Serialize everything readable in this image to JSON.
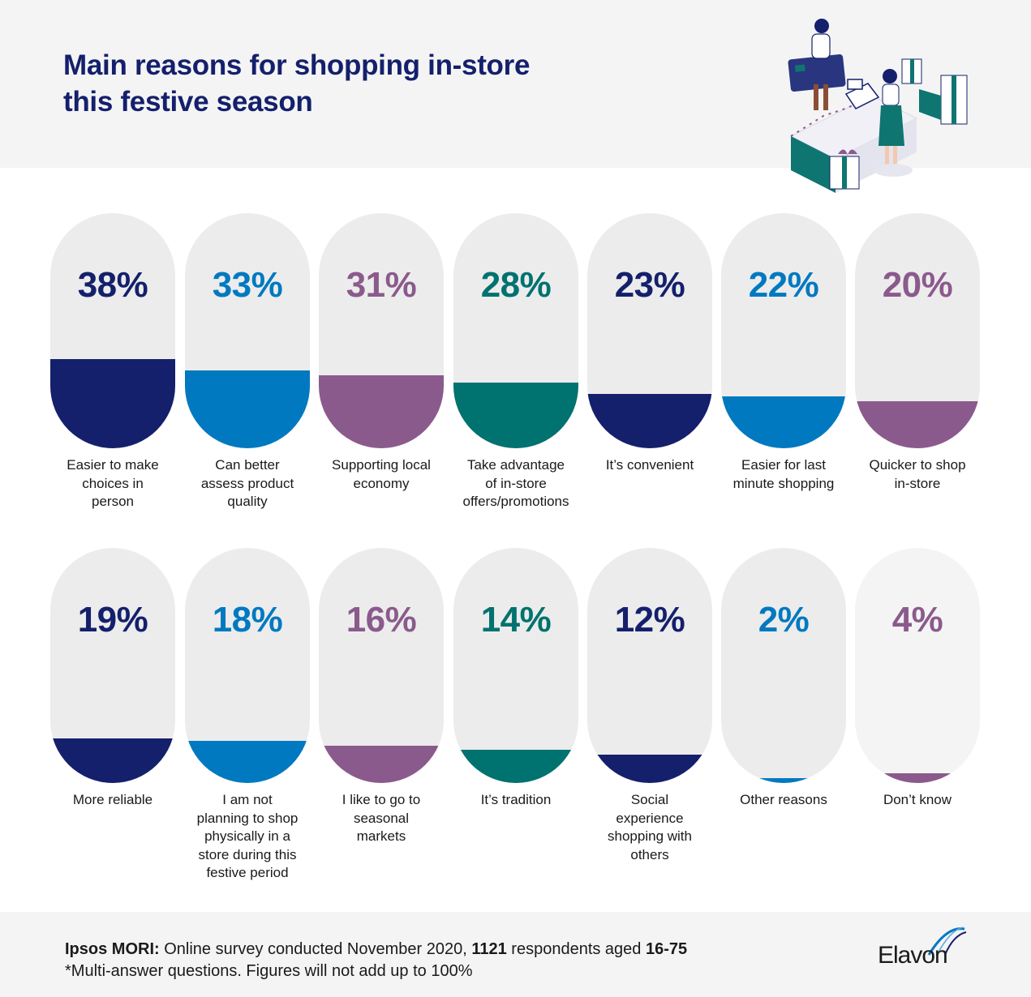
{
  "title_line1": "Main reasons for shopping in-store",
  "title_line2": "this festive season",
  "chart_data": {
    "type": "bar",
    "unit": "%",
    "categories": [
      "Easier to make choices in person",
      "Can better assess product quality",
      "Supporting local economy",
      "Take advantage of in-store offers/promotions",
      "It’s convenient",
      "Easier for last minute shopping",
      "Quicker to shop in-store",
      "More reliable",
      "I am not planning to shop physically in a store during this festive period",
      "I like to go to seasonal markets",
      "It’s tradition",
      "Social experience shopping with others",
      "Other reasons",
      "Don’t know"
    ],
    "values": [
      38,
      33,
      31,
      28,
      23,
      22,
      20,
      19,
      18,
      16,
      14,
      12,
      2,
      4
    ],
    "labels": [
      "38%",
      "33%",
      "31%",
      "28%",
      "23%",
      "22%",
      "20%",
      "19%",
      "18%",
      "16%",
      "14%",
      "12%",
      "2%",
      "4%"
    ],
    "label_lines": [
      [
        "Easier to make",
        "choices in",
        "person"
      ],
      [
        "Can better",
        "assess product",
        "quality"
      ],
      [
        "Supporting local",
        "economy"
      ],
      [
        "Take advantage",
        "of in-store",
        "offers/promotions"
      ],
      [
        "It’s convenient"
      ],
      [
        "Easier for last",
        "minute shopping"
      ],
      [
        "Quicker to shop",
        "in-store"
      ],
      [
        "More reliable"
      ],
      [
        "I am not",
        "planning to shop",
        "physically in a",
        "store during this",
        "festive period"
      ],
      [
        "I like to go to",
        "seasonal",
        "markets"
      ],
      [
        "It’s tradition"
      ],
      [
        "Social",
        "experience",
        "shopping with",
        "others"
      ],
      [
        "Other reasons"
      ],
      [
        "Don’t know"
      ]
    ],
    "colors": [
      "#14206c",
      "#0079c1",
      "#8b5a8c",
      "#00726f",
      "#14206c",
      "#0079c1",
      "#8b5a8c",
      "#14206c",
      "#0079c1",
      "#8b5a8c",
      "#00726f",
      "#14206c",
      "#0079c1",
      "#8b5a8c"
    ],
    "ylim": [
      0,
      100
    ]
  },
  "footer": {
    "source_bold": "Ipsos MORI:",
    "source_text1": " Online survey conducted November 2020, ",
    "respondents_bold": "1121",
    "source_text2": " respondents aged ",
    "ages_bold": "16-75",
    "note": "*Multi-answer questions. Figures will not add up to 100%"
  },
  "logo_text": "Elavon",
  "illustration_icon": "shopping-checkout-illustration-icon"
}
